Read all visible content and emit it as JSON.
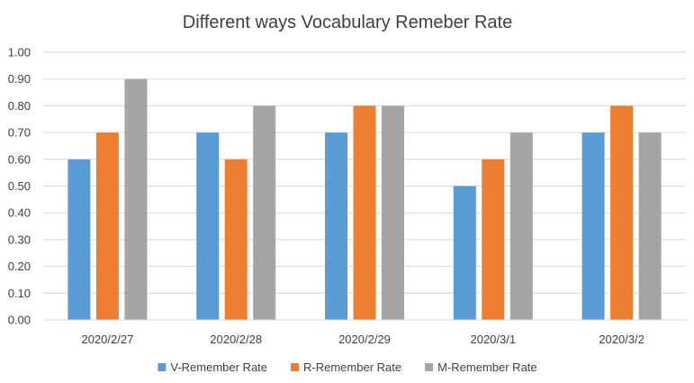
{
  "chart_data": {
    "type": "bar",
    "title": "Different ways Vocabulary Remeber Rate",
    "categories": [
      "2020/2/27",
      "2020/2/28",
      "2020/2/29",
      "2020/3/1",
      "2020/3/2"
    ],
    "series": [
      {
        "name": "V-Remember Rate",
        "color": "#5b9bd5",
        "values": [
          0.6,
          0.7,
          0.7,
          0.5,
          0.7
        ]
      },
      {
        "name": "R-Remember Rate",
        "color": "#ed7d31",
        "values": [
          0.7,
          0.6,
          0.8,
          0.6,
          0.8
        ]
      },
      {
        "name": "M-Remember Rate",
        "color": "#a5a5a5",
        "values": [
          0.9,
          0.8,
          0.8,
          0.7,
          0.7
        ]
      }
    ],
    "ylim": [
      0,
      1
    ],
    "yticks": [
      "0.00",
      "0.10",
      "0.20",
      "0.30",
      "0.40",
      "0.50",
      "0.60",
      "0.70",
      "0.80",
      "0.90",
      "1.00"
    ],
    "grid": true,
    "legend_position": "bottom"
  }
}
